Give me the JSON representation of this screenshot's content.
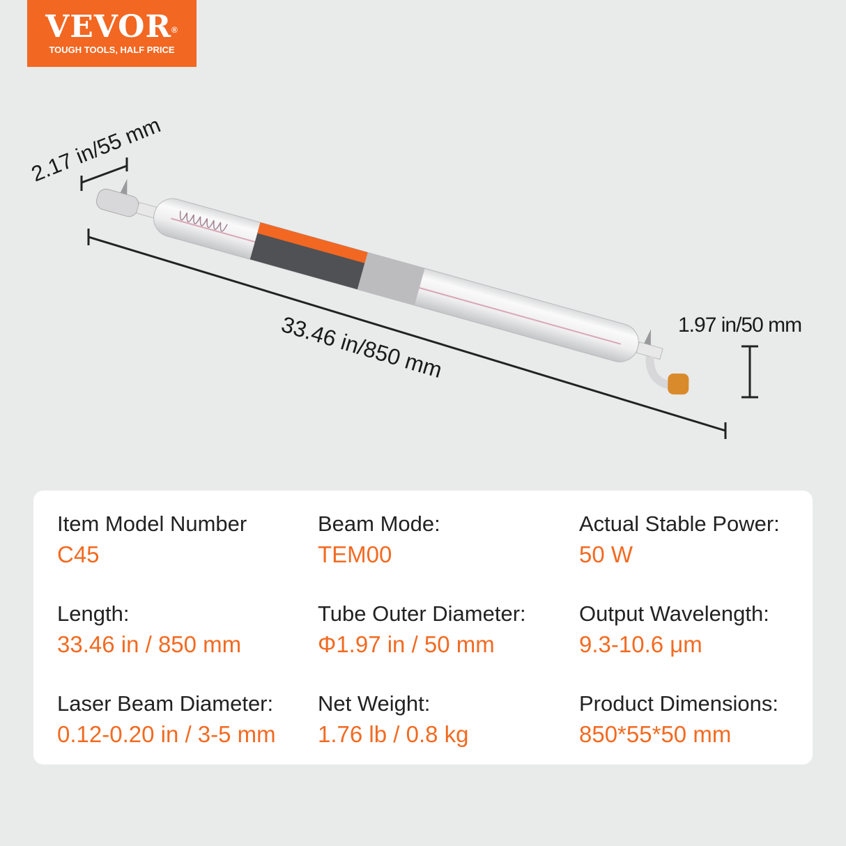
{
  "logo": {
    "brand": "VEVOR",
    "registered": "®",
    "tagline": "TOUGH TOOLS, HALF PRICE"
  },
  "dimensions": {
    "width": "2.17 in/55 mm",
    "length": "33.46 in/850 mm",
    "diameter": "1.97 in/50 mm"
  },
  "colors": {
    "accent": "#f26a21",
    "background": "#e9eaea",
    "card": "#ffffff"
  },
  "specs": [
    {
      "label": "Item Model Number",
      "value": "C45"
    },
    {
      "label": "Beam Mode:",
      "value": "TEM00"
    },
    {
      "label": "Actual Stable Power:",
      "value": "50 W"
    },
    {
      "label": "Length:",
      "value": "33.46 in / 850 mm"
    },
    {
      "label": "Tube Outer Diameter:",
      "value": "Φ1.97 in / 50 mm"
    },
    {
      "label": "Output Wavelength:",
      "value": "9.3-10.6 μm"
    },
    {
      "label": "Laser Beam Diameter:",
      "value": "0.12-0.20 in / 3-5 mm"
    },
    {
      "label": "Net Weight:",
      "value": "1.76 lb / 0.8 kg"
    },
    {
      "label": "Product Dimensions:",
      "value": "850*55*50 mm"
    }
  ]
}
